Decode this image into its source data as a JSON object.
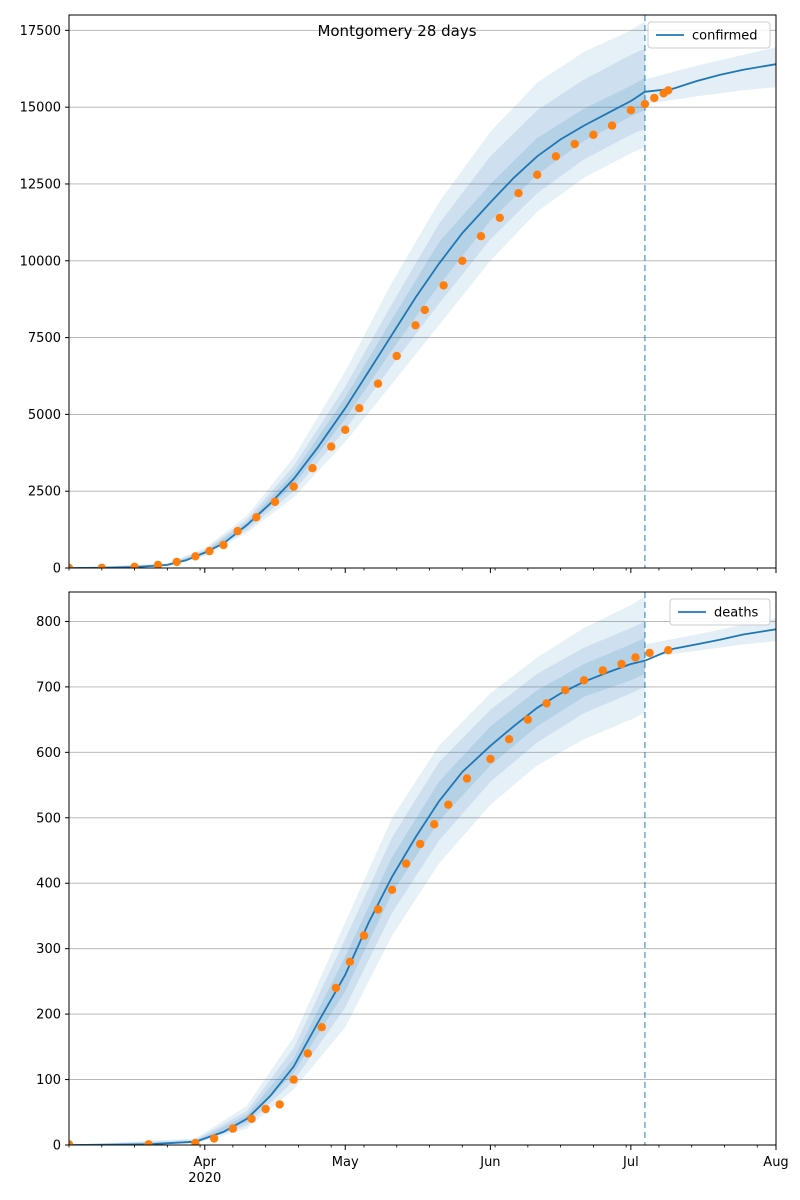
{
  "title": "Montgomery 28 days",
  "colors": {
    "model_line": "#1f77b4",
    "observed_points": "#ff7f0e",
    "band": "#1f77b4",
    "grid": "#b0b0b0",
    "axis": "#000000"
  },
  "chart_data": [
    {
      "type": "line",
      "name": "confirmed-panel",
      "legend": "confirmed",
      "legend_position": "upper right",
      "grid": "y",
      "xlim": [
        "2020-03-03",
        "2020-08-01"
      ],
      "ylim": [
        0,
        18000
      ],
      "yticks": [
        0,
        2500,
        5000,
        7500,
        10000,
        12500,
        15000,
        17500
      ],
      "xticks": [
        {
          "date": "2020-04-01",
          "label": "Apr",
          "sublabel": "2020"
        },
        {
          "date": "2020-05-01",
          "label": "May",
          "sublabel": ""
        },
        {
          "date": "2020-06-01",
          "label": "Jun",
          "sublabel": ""
        },
        {
          "date": "2020-07-01",
          "label": "Jul",
          "sublabel": ""
        },
        {
          "date": "2020-08-01",
          "label": "Aug",
          "sublabel": ""
        }
      ],
      "forecast_start": "2020-07-04",
      "series": [
        {
          "name": "confirmed",
          "kind": "line",
          "x": [
            "2020-03-03",
            "2020-03-10",
            "2020-03-17",
            "2020-03-24",
            "2020-03-28",
            "2020-04-01",
            "2020-04-05",
            "2020-04-10",
            "2020-04-15",
            "2020-04-20",
            "2020-04-25",
            "2020-05-01",
            "2020-05-06",
            "2020-05-11",
            "2020-05-16",
            "2020-05-21",
            "2020-05-26",
            "2020-06-01",
            "2020-06-06",
            "2020-06-11",
            "2020-06-16",
            "2020-06-21",
            "2020-06-26",
            "2020-07-01",
            "2020-07-04",
            "2020-07-10",
            "2020-07-15",
            "2020-07-20",
            "2020-07-25",
            "2020-08-01"
          ],
          "y": [
            0,
            5,
            30,
            100,
            250,
            500,
            800,
            1400,
            2100,
            2900,
            3900,
            5200,
            6400,
            7600,
            8800,
            9900,
            10900,
            11900,
            12700,
            13400,
            13950,
            14400,
            14800,
            15200,
            15500,
            15600,
            15850,
            16050,
            16220,
            16400
          ]
        },
        {
          "name": "observed confirmed",
          "kind": "scatter",
          "x": [
            "2020-03-03",
            "2020-03-10",
            "2020-03-17",
            "2020-03-22",
            "2020-03-26",
            "2020-03-30",
            "2020-04-02",
            "2020-04-05",
            "2020-04-08",
            "2020-04-12",
            "2020-04-16",
            "2020-04-20",
            "2020-04-24",
            "2020-04-28",
            "2020-05-01",
            "2020-05-04",
            "2020-05-08",
            "2020-05-12",
            "2020-05-16",
            "2020-05-18",
            "2020-05-22",
            "2020-05-26",
            "2020-05-30",
            "2020-06-03",
            "2020-06-07",
            "2020-06-11",
            "2020-06-15",
            "2020-06-19",
            "2020-06-23",
            "2020-06-27",
            "2020-07-01",
            "2020-07-04",
            "2020-07-06",
            "2020-07-08",
            "2020-07-09"
          ],
          "y": [
            0,
            5,
            40,
            100,
            200,
            380,
            550,
            750,
            1200,
            1650,
            2150,
            2650,
            3250,
            3950,
            4500,
            5200,
            6000,
            6900,
            7900,
            8400,
            9200,
            10000,
            10800,
            11400,
            12200,
            12800,
            13400,
            13800,
            14100,
            14400,
            14900,
            15100,
            15300,
            15450,
            15550
          ]
        }
      ],
      "bands": [
        {
          "level": "outer",
          "x": [
            "2020-03-03",
            "2020-03-24",
            "2020-04-01",
            "2020-04-10",
            "2020-04-20",
            "2020-05-01",
            "2020-05-11",
            "2020-05-21",
            "2020-06-01",
            "2020-06-11",
            "2020-06-21",
            "2020-07-01",
            "2020-07-04"
          ],
          "low": [
            0,
            60,
            380,
            1150,
            2300,
            4100,
            6000,
            7900,
            10000,
            11600,
            12700,
            13500,
            13700
          ],
          "high": [
            0,
            150,
            650,
            1700,
            3600,
            6400,
            9300,
            11900,
            14200,
            15800,
            16800,
            17500,
            17800
          ]
        },
        {
          "level": "middle",
          "x": [
            "2020-03-03",
            "2020-03-24",
            "2020-04-01",
            "2020-04-10",
            "2020-04-20",
            "2020-05-01",
            "2020-05-11",
            "2020-05-21",
            "2020-06-01",
            "2020-06-11",
            "2020-06-21",
            "2020-07-01",
            "2020-07-04"
          ],
          "low": [
            0,
            75,
            420,
            1230,
            2500,
            4500,
            6600,
            8600,
            10700,
            12200,
            13300,
            14100,
            14300
          ],
          "high": [
            0,
            130,
            590,
            1580,
            3320,
            5900,
            8600,
            11200,
            13400,
            14900,
            15900,
            16700,
            16900
          ]
        },
        {
          "level": "inner",
          "x": [
            "2020-03-03",
            "2020-03-24",
            "2020-04-01",
            "2020-04-10",
            "2020-04-20",
            "2020-05-01",
            "2020-05-11",
            "2020-05-21",
            "2020-06-01",
            "2020-06-11",
            "2020-06-21",
            "2020-07-01",
            "2020-07-04"
          ],
          "low": [
            0,
            85,
            460,
            1320,
            2700,
            4850,
            7100,
            9200,
            11300,
            12800,
            13900,
            14700,
            14900
          ],
          "high": [
            0,
            115,
            540,
            1480,
            3100,
            5550,
            8100,
            10600,
            12500,
            14000,
            14950,
            15700,
            15950
          ]
        },
        {
          "level": "forecast",
          "x": [
            "2020-07-04",
            "2020-07-15",
            "2020-07-25",
            "2020-08-01"
          ],
          "low": [
            15100,
            15350,
            15550,
            15650
          ],
          "high": [
            15900,
            16350,
            16700,
            16950
          ]
        }
      ]
    },
    {
      "type": "line",
      "name": "deaths-panel",
      "legend": "deaths",
      "legend_position": "upper right",
      "grid": "y",
      "xlim": [
        "2020-03-03",
        "2020-08-01"
      ],
      "ylim": [
        0,
        845
      ],
      "yticks": [
        0,
        100,
        200,
        300,
        400,
        500,
        600,
        700,
        800
      ],
      "xticks": [
        {
          "date": "2020-04-01",
          "label": "Apr",
          "sublabel": "2020"
        },
        {
          "date": "2020-05-01",
          "label": "May",
          "sublabel": ""
        },
        {
          "date": "2020-06-01",
          "label": "Jun",
          "sublabel": ""
        },
        {
          "date": "2020-07-01",
          "label": "Jul",
          "sublabel": ""
        },
        {
          "date": "2020-08-01",
          "label": "Aug",
          "sublabel": ""
        }
      ],
      "forecast_start": "2020-07-04",
      "series": [
        {
          "name": "deaths",
          "kind": "line",
          "x": [
            "2020-03-03",
            "2020-03-20",
            "2020-03-30",
            "2020-04-05",
            "2020-04-10",
            "2020-04-15",
            "2020-04-20",
            "2020-04-25",
            "2020-05-01",
            "2020-05-06",
            "2020-05-11",
            "2020-05-16",
            "2020-05-21",
            "2020-05-26",
            "2020-06-01",
            "2020-06-06",
            "2020-06-11",
            "2020-06-16",
            "2020-06-21",
            "2020-06-26",
            "2020-07-01",
            "2020-07-04",
            "2020-07-10",
            "2020-07-15",
            "2020-07-20",
            "2020-07-25",
            "2020-08-01"
          ],
          "y": [
            0,
            1,
            5,
            20,
            40,
            75,
            120,
            185,
            260,
            340,
            410,
            470,
            525,
            570,
            610,
            640,
            668,
            690,
            708,
            722,
            735,
            740,
            758,
            765,
            772,
            780,
            788
          ]
        },
        {
          "name": "observed deaths",
          "kind": "scatter",
          "x": [
            "2020-03-03",
            "2020-03-20",
            "2020-03-30",
            "2020-04-03",
            "2020-04-07",
            "2020-04-11",
            "2020-04-14",
            "2020-04-17",
            "2020-04-20",
            "2020-04-23",
            "2020-04-26",
            "2020-04-29",
            "2020-05-02",
            "2020-05-05",
            "2020-05-08",
            "2020-05-11",
            "2020-05-14",
            "2020-05-17",
            "2020-05-20",
            "2020-05-23",
            "2020-05-27",
            "2020-06-01",
            "2020-06-05",
            "2020-06-09",
            "2020-06-13",
            "2020-06-17",
            "2020-06-21",
            "2020-06-25",
            "2020-06-29",
            "2020-07-02",
            "2020-07-05",
            "2020-07-09"
          ],
          "y": [
            1,
            1,
            3,
            10,
            25,
            40,
            55,
            62,
            100,
            140,
            180,
            240,
            280,
            320,
            360,
            390,
            430,
            460,
            490,
            520,
            560,
            590,
            620,
            650,
            675,
            695,
            710,
            725,
            735,
            745,
            752,
            756
          ]
        }
      ],
      "bands": [
        {
          "level": "outer",
          "x": [
            "2020-03-03",
            "2020-03-30",
            "2020-04-10",
            "2020-04-20",
            "2020-05-01",
            "2020-05-11",
            "2020-05-21",
            "2020-06-01",
            "2020-06-11",
            "2020-06-21",
            "2020-07-01",
            "2020-07-04"
          ],
          "low": [
            0,
            2,
            25,
            85,
            180,
            320,
            430,
            520,
            580,
            620,
            650,
            660
          ],
          "high": [
            0,
            10,
            60,
            165,
            340,
            500,
            610,
            690,
            745,
            790,
            825,
            838
          ]
        },
        {
          "level": "middle",
          "x": [
            "2020-03-03",
            "2020-03-30",
            "2020-04-10",
            "2020-04-20",
            "2020-05-01",
            "2020-05-11",
            "2020-05-21",
            "2020-06-01",
            "2020-06-11",
            "2020-06-21",
            "2020-07-01",
            "2020-07-04"
          ],
          "low": [
            0,
            3,
            30,
            98,
            210,
            355,
            465,
            555,
            615,
            660,
            690,
            700
          ],
          "high": [
            0,
            8,
            52,
            148,
            315,
            470,
            585,
            665,
            720,
            760,
            790,
            800
          ]
        },
        {
          "level": "inner",
          "x": [
            "2020-03-03",
            "2020-03-30",
            "2020-04-10",
            "2020-04-20",
            "2020-05-01",
            "2020-05-11",
            "2020-05-21",
            "2020-06-01",
            "2020-06-11",
            "2020-06-21",
            "2020-07-01",
            "2020-07-04"
          ],
          "low": [
            0,
            4,
            35,
            110,
            235,
            385,
            495,
            580,
            640,
            685,
            710,
            720
          ],
          "high": [
            0,
            6,
            46,
            132,
            288,
            440,
            555,
            640,
            695,
            735,
            765,
            775
          ]
        },
        {
          "level": "forecast",
          "x": [
            "2020-07-04",
            "2020-07-15",
            "2020-07-25",
            "2020-08-01"
          ],
          "low": [
            745,
            755,
            765,
            770
          ],
          "high": [
            765,
            780,
            795,
            805
          ]
        }
      ]
    }
  ]
}
